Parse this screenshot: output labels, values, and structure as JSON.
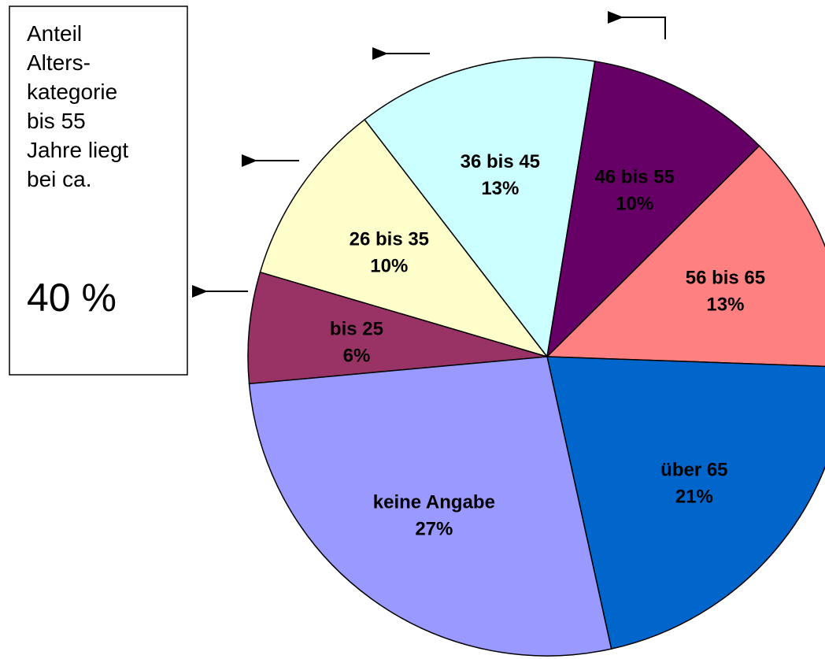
{
  "chart_data": {
    "type": "pie",
    "categories": [
      "bis 25",
      "26 bis 35",
      "36 bis 45",
      "46 bis 55",
      "56 bis 65",
      "über 65",
      "keine Angabe"
    ],
    "values": [
      6,
      10,
      13,
      10,
      13,
      21,
      27
    ],
    "value_labels": [
      "6%",
      "10%",
      "13%",
      "10%",
      "13%",
      "21%",
      "27%"
    ],
    "colors": [
      "#993366",
      "#ffffcc",
      "#ccffff",
      "#660066",
      "#ff8080",
      "#0066cc",
      "#9999ff"
    ],
    "annotation": {
      "lines": [
        "Anteil",
        "Alters-",
        "kategorie",
        "bis 55",
        "Jahre liegt",
        "bei ca."
      ],
      "value": "40 %"
    }
  }
}
